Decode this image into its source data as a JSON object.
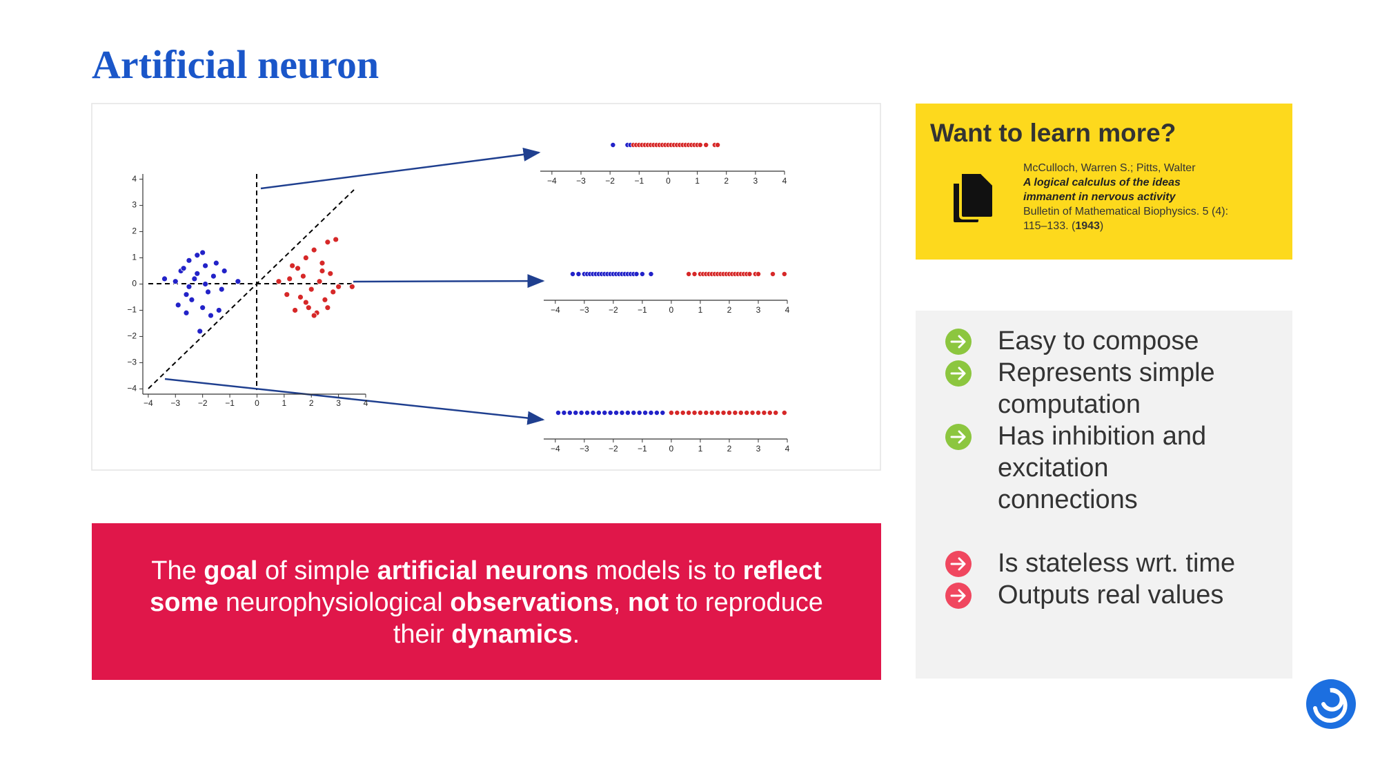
{
  "title": "Artificial neuron",
  "chart_data": [
    {
      "type": "scatter",
      "series": [
        {
          "color": "#2222c8",
          "x": [
            -2.8,
            -2.5,
            -2.2,
            -1.9,
            -1.6,
            -1.3,
            -2.4,
            -2.0,
            -1.7,
            -2.6,
            -3.0,
            -2.3,
            -1.8,
            -1.5,
            -2.1,
            -2.7,
            -1.4,
            -2.9,
            -2.2,
            -1.9,
            -3.4,
            -0.7,
            -2.5,
            -1.2,
            -2.0,
            -2.6
          ],
          "values": [
            0.5,
            0.9,
            1.1,
            0.7,
            0.3,
            -0.2,
            -0.6,
            -0.9,
            -1.2,
            -0.4,
            0.1,
            0.2,
            -0.3,
            0.8,
            -1.8,
            0.6,
            -1.0,
            -0.8,
            0.4,
            0.0,
            0.2,
            0.1,
            -0.1,
            0.5,
            1.2,
            -1.1
          ]
        },
        {
          "color": "#d62828",
          "x": [
            1.2,
            1.5,
            1.8,
            2.1,
            2.4,
            2.7,
            3.0,
            1.6,
            1.9,
            2.2,
            2.5,
            2.8,
            1.4,
            1.7,
            2.0,
            2.3,
            2.6,
            0.8,
            3.5,
            2.9,
            1.3,
            2.1,
            1.8,
            2.4,
            2.6,
            1.1
          ],
          "values": [
            0.2,
            0.6,
            1.0,
            1.3,
            0.8,
            0.4,
            -0.1,
            -0.5,
            -0.9,
            -1.1,
            -0.6,
            -0.3,
            -1.0,
            0.3,
            -0.2,
            0.1,
            1.6,
            0.1,
            -0.1,
            1.7,
            0.7,
            -1.2,
            -0.7,
            0.5,
            -0.9,
            -0.4
          ]
        }
      ],
      "xlim": [
        -4.2,
        4
      ],
      "ylim": [
        -4.2,
        4.2
      ],
      "xticks": [
        {
          "value": -4,
          "label": "−4"
        },
        {
          "value": -3,
          "label": "−3"
        },
        {
          "value": -2,
          "label": "−2"
        },
        {
          "value": -1,
          "label": "−1"
        },
        0,
        1,
        2,
        3,
        4
      ],
      "yticks": [
        4,
        3,
        2,
        1,
        0,
        {
          "value": -1,
          "label": "−1"
        },
        {
          "value": -2,
          "label": "−2"
        },
        {
          "value": -3,
          "label": "−3"
        },
        {
          "value": -4,
          "label": "−4"
        }
      ]
    },
    {
      "type": "strip",
      "series": [
        {
          "color": "#2222c8",
          "values": [
            -1.9,
            -1.4,
            -1.3
          ]
        },
        {
          "color": "#d62828",
          "values": [
            -1.2,
            -1.1,
            -1.0,
            -0.9,
            -0.8,
            -0.7,
            -0.6,
            -0.5,
            -0.4,
            -0.3,
            -0.2,
            -0.1,
            0.0,
            0.1,
            0.2,
            0.3,
            0.4,
            0.5,
            0.6,
            0.7,
            0.8,
            0.9,
            1.0,
            1.1,
            1.3,
            1.6,
            1.7
          ]
        }
      ],
      "xlim": [
        -4.4,
        4
      ],
      "xticks": [
        {
          "value": -4,
          "label": "−4"
        },
        {
          "value": -3,
          "label": "−3"
        },
        {
          "value": -2,
          "label": "−2"
        },
        {
          "value": -1,
          "label": "−1"
        },
        0,
        1,
        2,
        3,
        4
      ]
    },
    {
      "type": "strip",
      "series": [
        {
          "color": "#2222c8",
          "values": [
            -3.4,
            -3.2,
            -3.0,
            -2.9,
            -2.8,
            -2.7,
            -2.6,
            -2.5,
            -2.4,
            -2.3,
            -2.2,
            -2.1,
            -2.0,
            -1.9,
            -1.8,
            -1.7,
            -1.6,
            -1.5,
            -1.4,
            -1.3,
            -1.2,
            -1.0,
            -0.7
          ]
        },
        {
          "color": "#d62828",
          "values": [
            0.6,
            0.8,
            1.0,
            1.1,
            1.2,
            1.3,
            1.4,
            1.5,
            1.6,
            1.7,
            1.8,
            1.9,
            2.0,
            2.1,
            2.2,
            2.3,
            2.4,
            2.5,
            2.6,
            2.7,
            2.9,
            3.0,
            3.5,
            3.9
          ]
        }
      ],
      "xlim": [
        -4.4,
        4
      ],
      "xticks": [
        {
          "value": -4,
          "label": "−4"
        },
        {
          "value": -3,
          "label": "−3"
        },
        {
          "value": -2,
          "label": "−2"
        },
        {
          "value": -1,
          "label": "−1"
        },
        0,
        1,
        2,
        3,
        4
      ]
    },
    {
      "type": "strip",
      "series": [
        {
          "color": "#2222c8",
          "values": [
            -3.9,
            -3.7,
            -3.5,
            -3.3,
            -3.1,
            -2.9,
            -2.7,
            -2.5,
            -2.3,
            -2.1,
            -1.9,
            -1.7,
            -1.5,
            -1.3,
            -1.1,
            -0.9,
            -0.7,
            -0.5,
            -0.3
          ]
        },
        {
          "color": "#d62828",
          "values": [
            0.0,
            0.2,
            0.4,
            0.6,
            0.8,
            1.0,
            1.2,
            1.4,
            1.6,
            1.8,
            2.0,
            2.2,
            2.4,
            2.6,
            2.8,
            3.0,
            3.2,
            3.4,
            3.6,
            3.9
          ]
        }
      ],
      "xlim": [
        -4.4,
        4
      ],
      "xticks": [
        {
          "value": -4,
          "label": "−4"
        },
        {
          "value": -3,
          "label": "−3"
        },
        {
          "value": -2,
          "label": "−2"
        },
        {
          "value": -1,
          "label": "−1"
        },
        0,
        1,
        2,
        3,
        4
      ]
    }
  ],
  "learn_more": {
    "heading": "Want to learn more?",
    "authors": "McCulloch, Warren S.; Pitts, Walter",
    "paper_title": [
      "A logical calculus of the ideas",
      "immanent in nervous activity"
    ],
    "journal": "Bulletin of Mathematical Biophysics. 5 (4):",
    "pages": [
      "115–133. (",
      "1943",
      ")"
    ]
  },
  "pros": [
    [
      "Easy to compose"
    ],
    [
      "Represents simple",
      "computation"
    ],
    [
      "Has inhibition and",
      "excitation",
      "connections"
    ]
  ],
  "cons": [
    [
      "Is stateless wrt. time"
    ],
    [
      "Outputs real values"
    ]
  ],
  "statement": [
    [
      {
        "text": "The "
      },
      {
        "text": "goal",
        "bold": true
      },
      {
        "text": " of simple "
      },
      {
        "text": "artificial neurons",
        "bold": true
      },
      {
        "text": " models is to "
      },
      {
        "text": "reflect",
        "bold": true
      }
    ],
    [
      {
        "text": "some",
        "bold": true
      },
      {
        "text": " neurophysiological "
      },
      {
        "text": "observations",
        "bold": true
      },
      {
        "text": ", "
      },
      {
        "text": "not",
        "bold": true
      },
      {
        "text": " to reproduce"
      }
    ],
    [
      {
        "text": "their "
      },
      {
        "text": "dynamics",
        "bold": true
      },
      {
        "text": "."
      }
    ]
  ]
}
